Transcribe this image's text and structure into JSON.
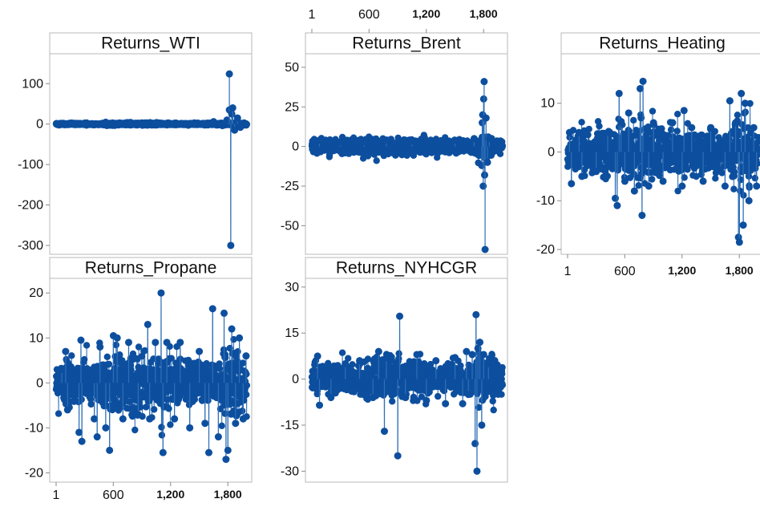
{
  "colors": {
    "series": "#0d4f9e",
    "line": "#2f6fb8",
    "frame": "#b9b9b9",
    "text": "#111111"
  },
  "chart_data": [
    {
      "type": "line",
      "title": "Returns_WTI",
      "n": 2000,
      "xlim": [
        1,
        2000
      ],
      "ylim": [
        -310,
        160
      ],
      "yticks": [
        100,
        0,
        -100,
        -200,
        -300
      ],
      "xticks": [],
      "noise": 1.2,
      "spikes": [
        [
          300,
          2.5
        ],
        [
          520,
          4.5
        ],
        [
          780,
          4
        ],
        [
          1050,
          3.5
        ],
        [
          1650,
          6
        ],
        [
          1790,
          10
        ],
        [
          1815,
          35
        ],
        [
          1815,
          124
        ],
        [
          1830,
          -300
        ],
        [
          1840,
          25
        ],
        [
          1850,
          40
        ],
        [
          1870,
          -15
        ],
        [
          1900,
          15
        ],
        [
          1930,
          -8
        ]
      ],
      "series": [
        {
          "name": "Returns_WTI"
        }
      ]
    },
    {
      "type": "line",
      "title": "Returns_Brent",
      "n": 2000,
      "xlim": [
        1,
        2000
      ],
      "ylim": [
        -65,
        55
      ],
      "yticks": [
        50,
        25,
        0,
        -25,
        -50
      ],
      "xticks": [
        "1",
        "600",
        "1,200",
        "1,800"
      ],
      "xtick_values": [
        1,
        600,
        1200,
        1800
      ],
      "noise": 2,
      "spikes": [
        [
          80,
          4
        ],
        [
          300,
          3
        ],
        [
          550,
          3
        ],
        [
          780,
          4
        ],
        [
          1050,
          3.5
        ],
        [
          1500,
          4
        ],
        [
          1700,
          5
        ],
        [
          1780,
          -12
        ],
        [
          1785,
          15
        ],
        [
          1790,
          20
        ],
        [
          1795,
          -25
        ],
        [
          1800,
          30
        ],
        [
          1805,
          41
        ],
        [
          1810,
          -18
        ],
        [
          1815,
          -65
        ],
        [
          1825,
          18
        ],
        [
          1840,
          -10
        ],
        [
          1860,
          5
        ]
      ],
      "series": [
        {
          "name": "Returns_Brent"
        }
      ]
    },
    {
      "type": "line",
      "title": "Returns_Heating",
      "n": 2000,
      "xlim": [
        1,
        2000
      ],
      "ylim": [
        -20,
        19
      ],
      "yticks": [
        10,
        0,
        -10,
        -20
      ],
      "xticks": [
        "1",
        "600",
        "1,200",
        "1,800"
      ],
      "xtick_values": [
        1,
        600,
        1200,
        1800
      ],
      "noise": 2,
      "spikes": [
        [
          20,
          4
        ],
        [
          40,
          -6.5
        ],
        [
          120,
          4
        ],
        [
          150,
          -5
        ],
        [
          300,
          -4
        ],
        [
          420,
          4
        ],
        [
          500,
          -9.5
        ],
        [
          520,
          -11
        ],
        [
          540,
          12
        ],
        [
          560,
          6
        ],
        [
          600,
          -6
        ],
        [
          640,
          8
        ],
        [
          700,
          -8
        ],
        [
          760,
          13
        ],
        [
          770,
          7
        ],
        [
          780,
          -13
        ],
        [
          790,
          14.5
        ],
        [
          850,
          -7
        ],
        [
          900,
          6
        ],
        [
          1000,
          -6
        ],
        [
          1100,
          6
        ],
        [
          1200,
          -7
        ],
        [
          1220,
          8.5
        ],
        [
          1300,
          5
        ],
        [
          1420,
          -6
        ],
        [
          1500,
          5
        ],
        [
          1650,
          -7
        ],
        [
          1700,
          10.5
        ],
        [
          1760,
          6
        ],
        [
          1790,
          -17.5
        ],
        [
          1800,
          -18.5
        ],
        [
          1820,
          12
        ],
        [
          1840,
          -15
        ],
        [
          1860,
          10
        ],
        [
          1900,
          -10
        ],
        [
          1950,
          5
        ],
        [
          1980,
          -7
        ]
      ],
      "series": [
        {
          "name": "Returns_Heating"
        }
      ]
    },
    {
      "type": "line",
      "title": "Returns_Propane",
      "n": 2000,
      "xlim": [
        1,
        2000
      ],
      "ylim": [
        -21,
        22
      ],
      "yticks": [
        20,
        10,
        0,
        -10,
        -20
      ],
      "xticks": [
        "1",
        "600",
        "1,200",
        "1,800"
      ],
      "xtick_values": [
        1,
        600,
        1200,
        1800
      ],
      "noise": 2.5,
      "spikes": [
        [
          60,
          3
        ],
        [
          100,
          7
        ],
        [
          120,
          -6
        ],
        [
          240,
          -11
        ],
        [
          260,
          9.5
        ],
        [
          270,
          -13
        ],
        [
          400,
          -8
        ],
        [
          430,
          -12
        ],
        [
          460,
          8
        ],
        [
          520,
          -10
        ],
        [
          560,
          -15
        ],
        [
          600,
          10.5
        ],
        [
          640,
          10
        ],
        [
          700,
          -8
        ],
        [
          760,
          9
        ],
        [
          860,
          -7
        ],
        [
          960,
          13
        ],
        [
          980,
          -8
        ],
        [
          1040,
          9
        ],
        [
          1100,
          20
        ],
        [
          1120,
          -15.5
        ],
        [
          1160,
          9
        ],
        [
          1240,
          -8
        ],
        [
          1300,
          9
        ],
        [
          1400,
          -10
        ],
        [
          1500,
          7
        ],
        [
          1560,
          -9
        ],
        [
          1600,
          -15.5
        ],
        [
          1640,
          16.5
        ],
        [
          1700,
          -12
        ],
        [
          1760,
          15.5
        ],
        [
          1780,
          -17
        ],
        [
          1800,
          -15
        ],
        [
          1840,
          12
        ],
        [
          1880,
          -9
        ],
        [
          1920,
          10
        ],
        [
          1960,
          -8
        ],
        [
          1990,
          6
        ]
      ],
      "series": [
        {
          "name": "Returns_Propane"
        }
      ]
    },
    {
      "type": "line",
      "title": "Returns_NYHCGR",
      "n": 2000,
      "xlim": [
        1,
        2000
      ],
      "ylim": [
        -32,
        31
      ],
      "yticks": [
        30,
        15,
        0,
        -15,
        -30
      ],
      "xticks": [],
      "noise": 2.2,
      "spikes": [
        [
          60,
          7.5
        ],
        [
          80,
          -8.5
        ],
        [
          200,
          -6
        ],
        [
          350,
          5
        ],
        [
          500,
          6
        ],
        [
          640,
          -6
        ],
        [
          700,
          9
        ],
        [
          760,
          -17
        ],
        [
          780,
          7
        ],
        [
          900,
          -25
        ],
        [
          920,
          20.5
        ],
        [
          980,
          -6
        ],
        [
          1100,
          8
        ],
        [
          1200,
          -7
        ],
        [
          1300,
          6
        ],
        [
          1400,
          -8
        ],
        [
          1500,
          7
        ],
        [
          1580,
          -8
        ],
        [
          1620,
          9
        ],
        [
          1640,
          -5
        ],
        [
          1680,
          8
        ],
        [
          1710,
          -21
        ],
        [
          1720,
          21
        ],
        [
          1730,
          -30
        ],
        [
          1740,
          10
        ],
        [
          1760,
          12
        ],
        [
          1780,
          -15
        ],
        [
          1800,
          8
        ],
        [
          1850,
          5
        ]
      ],
      "series": [
        {
          "name": "Returns_NYHCGR"
        }
      ]
    }
  ]
}
